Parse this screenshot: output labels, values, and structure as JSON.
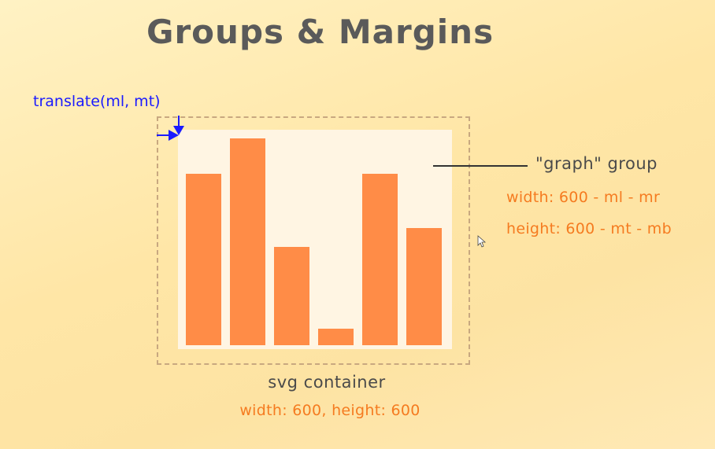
{
  "title": "Groups & Margins",
  "translate_label": "translate(ml, mt)",
  "graph_group": {
    "label": "\"graph\" group",
    "width_formula": "width: 600 - ml - mr",
    "height_formula": "height: 600 - mt - mb"
  },
  "svg_container": {
    "label": "svg container",
    "size": "width: 600, height: 600"
  },
  "bars": [
    0.82,
    0.99,
    0.47,
    0.08,
    0.82,
    0.56
  ],
  "colors": {
    "bar": "#ff8c47",
    "graph_background": "#fff5e3",
    "annotation": "#f57b20",
    "arrow": "#1a1aff",
    "title": "#5a5a5a"
  },
  "icons": [
    "translate-arrow-icon",
    "mouse-cursor-icon"
  ]
}
